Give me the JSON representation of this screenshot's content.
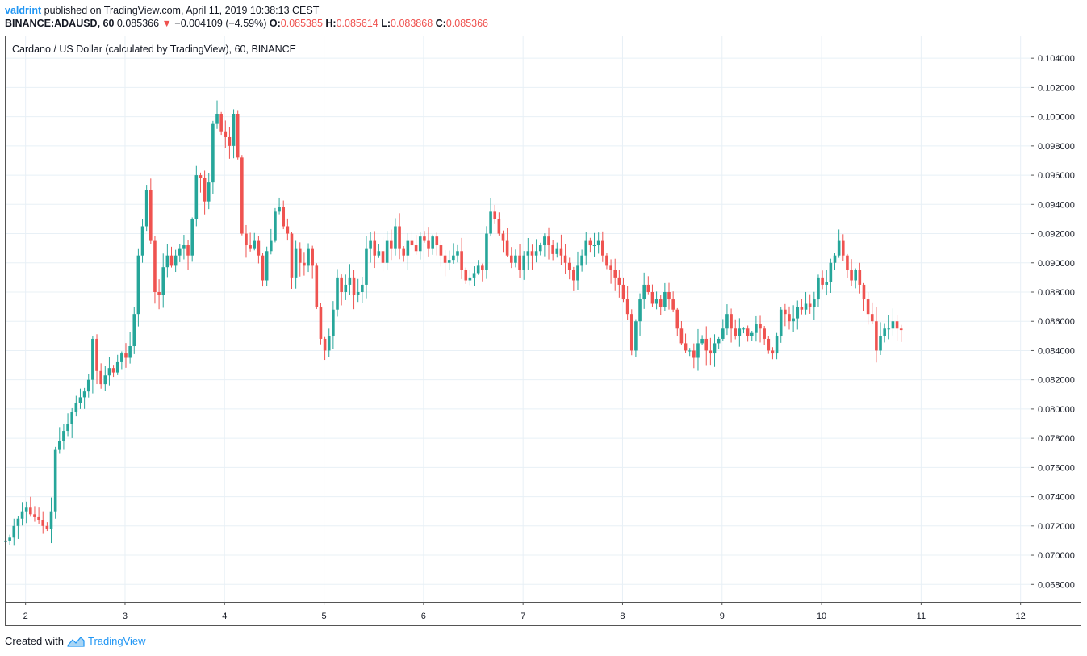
{
  "header": {
    "user": "valdrint",
    "published_text": "published on TradingView.com, April 11, 2019 10:38:13 CEST"
  },
  "ticker": {
    "symbol": "BINANCE:ADAUSD, 60",
    "last": "0.085366",
    "change": "−0.004109 (−4.59%)",
    "open_label": "O:",
    "open": "0.085385",
    "high_label": "H:",
    "high": "0.085614",
    "low_label": "L:",
    "low": "0.083868",
    "close_label": "C:",
    "close": "0.085366"
  },
  "footer": {
    "created_with": "Created with",
    "brand": "TradingView"
  },
  "colors": {
    "up": "#26a69a",
    "down": "#ef5350",
    "grid": "#e8f0f6",
    "border": "#555555",
    "accent": "#2196f3"
  },
  "chart_data": {
    "type": "candlestick",
    "title": "Cardano / US Dollar (calculated by TradingView), 60, BINANCE",
    "x_tick_labels": [
      "2",
      "3",
      "4",
      "5",
      "6",
      "7",
      "8",
      "9",
      "10",
      "11",
      "12"
    ],
    "x_range_days": [
      1.8,
      12.1
    ],
    "ylim": [
      0.0668,
      0.1055
    ],
    "y_ticks": [
      0.068,
      0.07,
      0.072,
      0.074,
      0.076,
      0.078,
      0.08,
      0.082,
      0.084,
      0.086,
      0.088,
      0.09,
      0.092,
      0.094,
      0.096,
      0.098,
      0.1,
      0.102,
      0.104
    ],
    "y_tick_labels": [
      "0.068000",
      "0.070000",
      "0.072000",
      "0.074000",
      "0.076000",
      "0.078000",
      "0.080000",
      "0.082000",
      "0.084000",
      "0.086000",
      "0.088000",
      "0.090000",
      "0.092000",
      "0.094000",
      "0.096000",
      "0.098000",
      "0.100000",
      "0.102000",
      "0.104000"
    ],
    "interval_hours": 1,
    "start_day": 1.8,
    "closes": [
      0.071,
      0.0712,
      0.072,
      0.0725,
      0.073,
      0.0733,
      0.0728,
      0.0726,
      0.0724,
      0.072,
      0.0718,
      0.073,
      0.0772,
      0.0778,
      0.0785,
      0.079,
      0.0798,
      0.0804,
      0.0808,
      0.0812,
      0.082,
      0.0848,
      0.0826,
      0.0817,
      0.0823,
      0.0828,
      0.0825,
      0.0832,
      0.0838,
      0.0835,
      0.0843,
      0.0865,
      0.0905,
      0.0925,
      0.095,
      0.0915,
      0.088,
      0.0878,
      0.0897,
      0.0905,
      0.0898,
      0.0905,
      0.091,
      0.0912,
      0.0905,
      0.093,
      0.096,
      0.0958,
      0.0942,
      0.0955,
      0.0995,
      0.1002,
      0.099,
      0.0986,
      0.098,
      0.1002,
      0.0972,
      0.092,
      0.0912,
      0.091,
      0.0915,
      0.0905,
      0.0888,
      0.0908,
      0.0915,
      0.0935,
      0.0938,
      0.0925,
      0.092,
      0.089,
      0.091,
      0.09,
      0.0898,
      0.091,
      0.0898,
      0.087,
      0.0848,
      0.084,
      0.085,
      0.0868,
      0.089,
      0.088,
      0.0885,
      0.089,
      0.0878,
      0.088,
      0.0885,
      0.091,
      0.0915,
      0.0905,
      0.0908,
      0.09,
      0.0915,
      0.091,
      0.0925,
      0.091,
      0.0905,
      0.0915,
      0.0912,
      0.0908,
      0.0918,
      0.0915,
      0.091,
      0.0918,
      0.0912,
      0.0905,
      0.09,
      0.0902,
      0.0905,
      0.0908,
      0.0895,
      0.0888,
      0.089,
      0.0893,
      0.0898,
      0.0895,
      0.092,
      0.0935,
      0.093,
      0.092,
      0.0915,
      0.0905,
      0.09,
      0.0905,
      0.0895,
      0.0905,
      0.0908,
      0.0905,
      0.0908,
      0.0912,
      0.0918,
      0.0912,
      0.0906,
      0.091,
      0.0905,
      0.09,
      0.0895,
      0.0888,
      0.0898,
      0.0905,
      0.0915,
      0.0912,
      0.0912,
      0.0915,
      0.0905,
      0.0898,
      0.0895,
      0.089,
      0.0885,
      0.0875,
      0.0865,
      0.084,
      0.086,
      0.0875,
      0.0885,
      0.088,
      0.0872,
      0.0875,
      0.087,
      0.088,
      0.0875,
      0.0868,
      0.0855,
      0.0845,
      0.084,
      0.084,
      0.0835,
      0.0845,
      0.0848,
      0.084,
      0.0838,
      0.0845,
      0.0848,
      0.0855,
      0.0865,
      0.0855,
      0.085,
      0.0855,
      0.0855,
      0.085,
      0.0852,
      0.0858,
      0.0855,
      0.0848,
      0.084,
      0.0838,
      0.085,
      0.0868,
      0.0865,
      0.086,
      0.0862,
      0.087,
      0.0868,
      0.0872,
      0.087,
      0.0875,
      0.089,
      0.0885,
      0.0887,
      0.09,
      0.0905,
      0.0915,
      0.0905,
      0.0895,
      0.0888,
      0.0895,
      0.0885,
      0.0875,
      0.0865,
      0.086,
      0.084,
      0.085,
      0.0855,
      0.0855,
      0.086,
      0.0855,
      0.0854
    ]
  }
}
